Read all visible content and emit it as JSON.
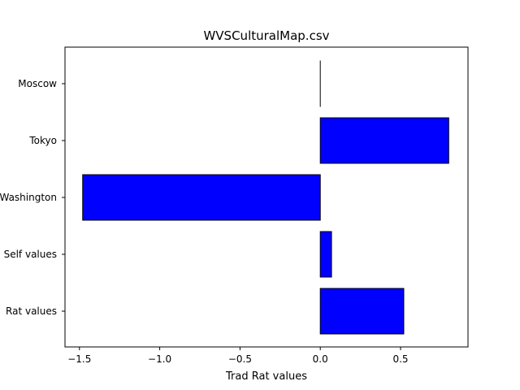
{
  "chart_data": {
    "type": "bar",
    "orientation": "horizontal",
    "title": "WVSCulturalMap.csv",
    "xlabel": "Trad Rat values",
    "ylabel": "",
    "categories": [
      "Rat values",
      "Self values",
      "Washington",
      "Tokyo",
      "Moscow"
    ],
    "values": [
      0.52,
      0.07,
      -1.48,
      0.8,
      0.0
    ],
    "xlim": [
      -1.59,
      0.92
    ],
    "xticks": [
      -1.5,
      -1.0,
      -0.5,
      0.0,
      0.5
    ],
    "xtick_labels": [
      "−1.5",
      "−1.0",
      "−0.5",
      "0.0",
      "0.5"
    ],
    "grid": false,
    "bar_color": "#0000ff",
    "edge_color": "#000000"
  }
}
